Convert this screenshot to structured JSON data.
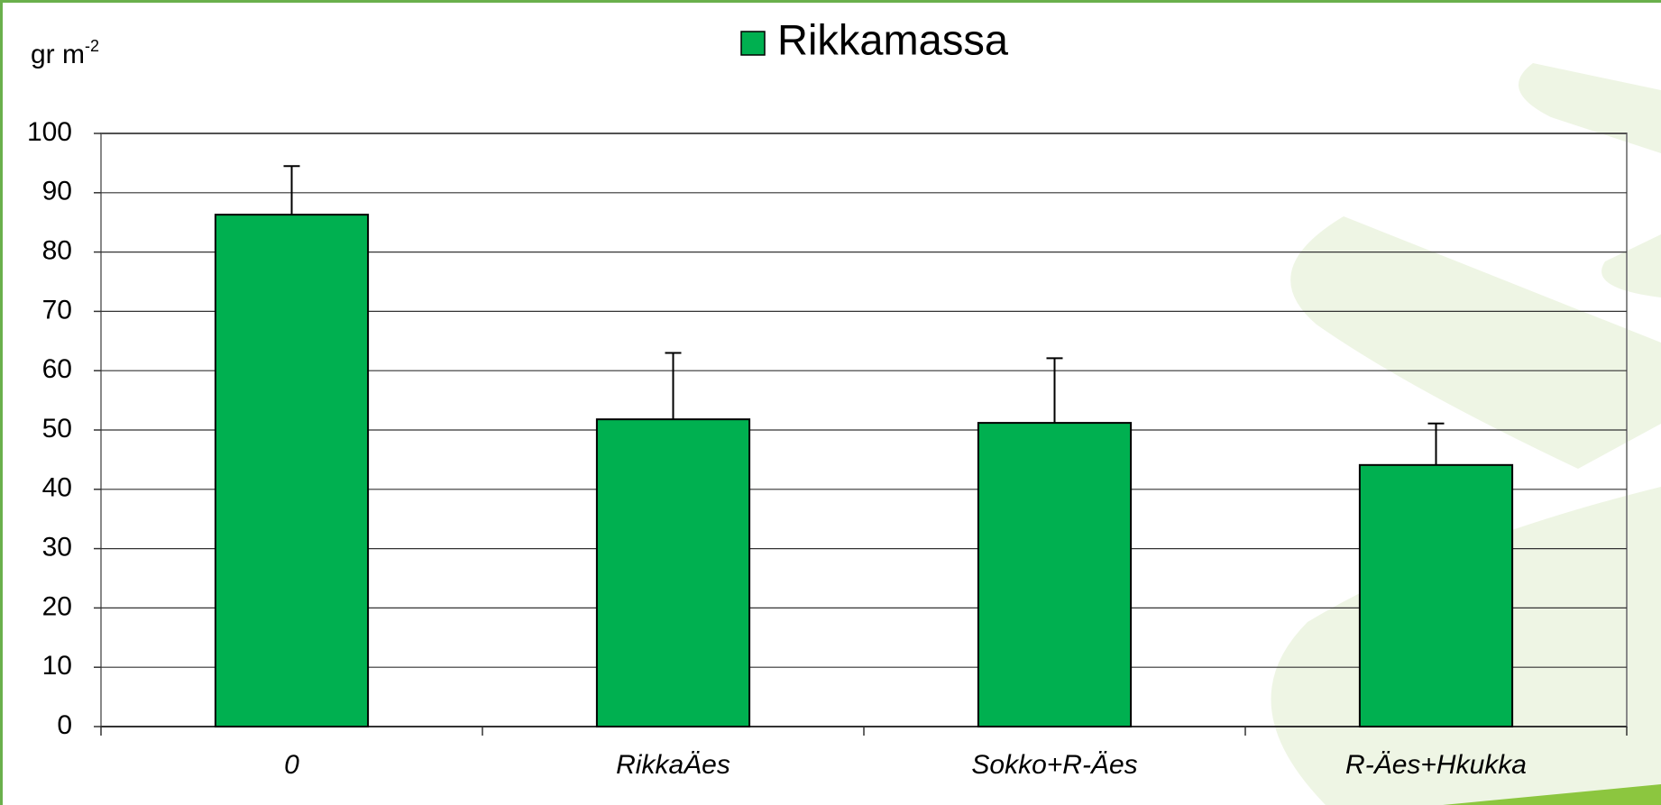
{
  "chart_data": {
    "type": "bar",
    "legend": "Rikkamassa",
    "y_label": {
      "text": "gr m",
      "superscript": "-2"
    },
    "categories": [
      "0",
      "RikkaÄes",
      "Sokko+R-Äes",
      "R-Äes+Hkukka"
    ],
    "values": [
      86.3,
      51.8,
      51.2,
      44.1
    ],
    "errors": [
      8.2,
      11.2,
      10.9,
      7.0
    ],
    "color": "#00b050",
    "ylim": [
      0,
      100
    ],
    "yticks": [
      0,
      10,
      20,
      30,
      40,
      50,
      60,
      70,
      80,
      90,
      100
    ],
    "grid": true
  }
}
